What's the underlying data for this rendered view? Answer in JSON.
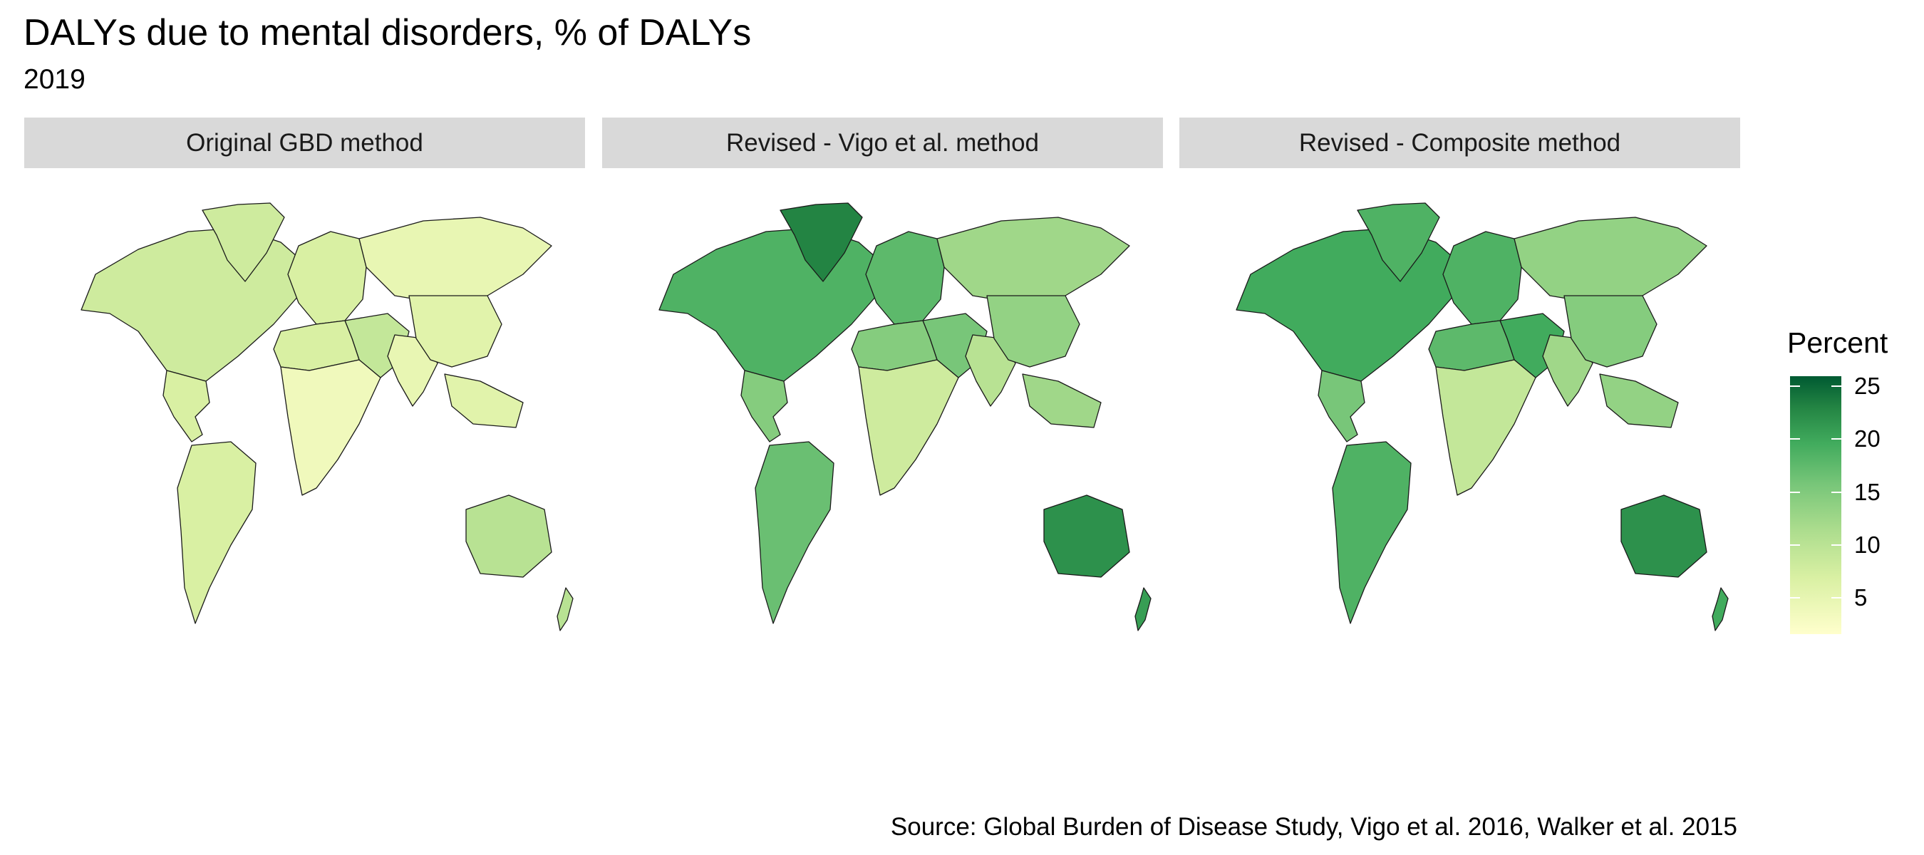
{
  "title": "DALYs due to mental disorders, % of DALYs",
  "subtitle": "2019",
  "source": "Source: Global Burden of Disease Study, Vigo et al. 2016, Walker et al. 2015",
  "panels": [
    {
      "label": "Original GBD method"
    },
    {
      "label": "Revised - Vigo et al. method"
    },
    {
      "label": "Revised - Composite method"
    }
  ],
  "legend": {
    "title": "Percent",
    "ticks": [
      "25",
      "20",
      "15",
      "10",
      "5"
    ],
    "tick_values": [
      25,
      20,
      15,
      10,
      5
    ],
    "range": [
      2,
      26
    ],
    "colors": [
      "#ffffcc",
      "#d9f0a3",
      "#addd8e",
      "#78c679",
      "#41ab5d",
      "#238443",
      "#005a32"
    ]
  },
  "regions": [
    "north_america",
    "greenland",
    "central_america",
    "south_america",
    "europe",
    "russia",
    "middle_east",
    "north_africa",
    "subsaharan_africa",
    "south_asia",
    "china",
    "southeast_asia",
    "australia",
    "new_zealand"
  ],
  "region_values": {
    "original": {
      "north_america": 8,
      "greenland": 8,
      "central_america": 7,
      "south_america": 7,
      "europe": 7,
      "russia": 5,
      "middle_east": 9,
      "north_africa": 7,
      "subsaharan_africa": 4,
      "south_asia": 5,
      "china": 6,
      "southeast_asia": 6,
      "australia": 10,
      "new_zealand": 10
    },
    "vigo": {
      "north_america": 18,
      "greenland": 22,
      "central_america": 14,
      "south_america": 16,
      "europe": 17,
      "russia": 12,
      "middle_east": 15,
      "north_africa": 14,
      "subsaharan_africa": 8,
      "south_asia": 10,
      "china": 13,
      "southeast_asia": 12,
      "australia": 21,
      "new_zealand": 20
    },
    "composite": {
      "north_america": 19,
      "greenland": 18,
      "central_america": 15,
      "south_america": 18,
      "europe": 18,
      "russia": 13,
      "middle_east": 19,
      "north_africa": 17,
      "subsaharan_africa": 9,
      "south_asia": 12,
      "china": 14,
      "southeast_asia": 13,
      "australia": 21,
      "new_zealand": 19
    }
  }
}
